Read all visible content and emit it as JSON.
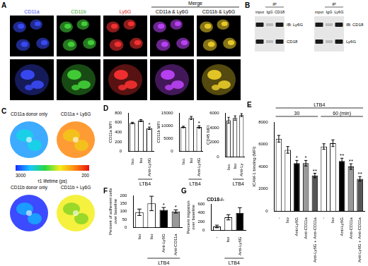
{
  "figure": {
    "A": {
      "label": "A",
      "columns": [
        "CD11a",
        "CD11b",
        "Ly6G"
      ],
      "merge_title": "Merge",
      "merge_columns": [
        "CD11a & Ly6G",
        "CD11b & Ly6G"
      ]
    },
    "B": {
      "label": "B",
      "blots": [
        {
          "ip": "IP",
          "lanes": [
            "input",
            "IgG",
            "CD18"
          ],
          "rows": [
            "IB: Ly6G",
            "CD18"
          ]
        },
        {
          "ip": "IP",
          "lanes": [
            "input",
            "IgG",
            "Ly6G"
          ],
          "rows": [
            "IB: CD18",
            "Ly6G"
          ]
        }
      ]
    },
    "C": {
      "label": "C",
      "images": [
        "CD11a donor only",
        "CD11a + Ly6G",
        "CD11b donor only",
        "CD11b + Ly6G"
      ],
      "colorbar": {
        "label": "τ1 lifetime (ps)",
        "range": [
          3000,
          200
        ]
      }
    }
  },
  "chart_data": [
    {
      "panel": "D",
      "type": "bar",
      "y_label": "CD11a MFI",
      "categories": [
        "Iso.",
        "Iso",
        "Anti-Ly6G"
      ],
      "values": [
        590,
        640,
        480
      ],
      "errors": [
        15,
        20,
        25
      ],
      "significance": [
        null,
        null,
        "*"
      ],
      "colors": [
        "#ffffff",
        "#ffffff",
        "#ffffff"
      ],
      "ylim": [
        0,
        800
      ],
      "yticks": [
        0,
        200,
        400,
        600,
        800
      ],
      "grid": false,
      "groups": [
        {
          "label": "LTB4",
          "from": 1,
          "to": 2
        }
      ]
    },
    {
      "type": "bar",
      "y_label": "CD11b MFI",
      "categories": [
        "Iso.",
        "Iso",
        "Anti-Ly6G"
      ],
      "values": [
        9500,
        13000,
        9500
      ],
      "errors": [
        300,
        600,
        500
      ],
      "significance": [
        null,
        null,
        "*"
      ],
      "colors": [
        "#ffffff",
        "#ffffff",
        "#ffffff"
      ],
      "ylim": [
        0,
        15000
      ],
      "yticks": [
        0,
        5000,
        10000,
        15000
      ],
      "grid": false,
      "groups": [
        {
          "label": "LTB4",
          "from": 1,
          "to": 2
        }
      ]
    },
    {
      "type": "bar",
      "y_label": "CD45 MFI",
      "categories": [
        "Iso.",
        "Iso",
        "Anti-Ly"
      ],
      "values": [
        5000,
        5300,
        5700
      ],
      "errors": [
        400,
        300,
        200
      ],
      "significance": [
        null,
        null,
        null
      ],
      "colors": [
        "#ffffff",
        "#ffffff",
        "#ffffff"
      ],
      "ylim": [
        0,
        6000
      ],
      "yticks": [
        0,
        2000,
        4000,
        6000
      ],
      "grid": false,
      "groups": [
        {
          "label": "LTB4",
          "from": 1,
          "to": 2
        }
      ]
    },
    {
      "panel": "E",
      "type": "bar",
      "y_label": "ICAM-1 binding (MFI)",
      "categories": [
        "-",
        "Iso",
        "Anti-Ly6G",
        "Anti-CD11a",
        "Anti-Ly6G + Anti-CD11a",
        "-",
        "Iso",
        "Anti-Ly6G",
        "Anti-CD11a",
        "Anti-Ly6G + Anti-CD11a"
      ],
      "values": [
        6500,
        5500,
        4300,
        4300,
        3200,
        5800,
        6100,
        4500,
        4000,
        2900
      ],
      "errors": [
        300,
        300,
        250,
        250,
        200,
        250,
        300,
        250,
        250,
        200
      ],
      "significance": [
        null,
        null,
        "*",
        "*",
        "**",
        null,
        null,
        "**",
        "**",
        "**"
      ],
      "colors": [
        "#ffffff",
        "#ffffff",
        "#000000",
        "#999999",
        "#555555",
        "#ffffff",
        "#ffffff",
        "#000000",
        "#999999",
        "#555555"
      ],
      "ylim": [
        0,
        8000
      ],
      "yticks": [
        0,
        2000,
        4000,
        6000,
        8000
      ],
      "grid": false,
      "top_groups": [
        {
          "label": "30",
          "from": 0,
          "to": 4,
          "level": 0
        },
        {
          "label": "60 (min)",
          "from": 5,
          "to": 9,
          "level": 0
        },
        {
          "label": "LTB4",
          "from": 0,
          "to": 9,
          "level": 1
        }
      ]
    },
    {
      "panel": "F",
      "type": "bar",
      "y_label": [
        "Percent of adherent cells",
        "over baseline"
      ],
      "categories": [
        "Iso",
        "Iso",
        "Anti-Ly6G",
        "Anti-CD11a"
      ],
      "values": [
        95,
        150,
        110,
        100
      ],
      "errors": [
        20,
        45,
        15,
        10
      ],
      "significance": [
        null,
        null,
        "*",
        "*"
      ],
      "colors": [
        "#ffffff",
        "#ffffff",
        "#000000",
        "#999999"
      ],
      "ylim": [
        0,
        200
      ],
      "yticks": [
        0,
        50,
        100,
        150,
        200
      ],
      "grid": false,
      "groups": [
        {
          "label": "LTB4",
          "from": 1,
          "to": 3
        }
      ]
    },
    {
      "panel": "G",
      "type": "bar",
      "title": "CD18-/-",
      "y_label": [
        "Percent migration",
        "over baseline"
      ],
      "categories": [
        "-",
        "Iso",
        "Anti-Ly6G"
      ],
      "values": [
        90,
        300,
        400
      ],
      "errors": [
        30,
        60,
        120
      ],
      "significance": [
        null,
        null,
        null
      ],
      "colors": [
        "#ffffff",
        "#ffffff",
        "#000000"
      ],
      "ylim": [
        0,
        600
      ],
      "yticks": [
        0,
        200,
        400,
        600
      ],
      "grid": false,
      "groups": [
        {
          "label": "LTB4",
          "from": 1,
          "to": 2
        }
      ]
    }
  ]
}
